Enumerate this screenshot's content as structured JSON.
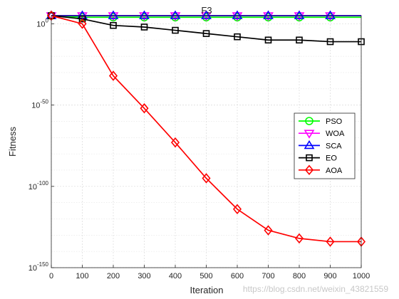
{
  "chart_data": {
    "type": "line",
    "title": "F3",
    "xlabel": "Iteration",
    "ylabel": "Fitness",
    "x_scale": "linear",
    "y_scale": "log",
    "xlim": [
      0,
      1000
    ],
    "ylim_exponent": [
      -150,
      5
    ],
    "x_ticks": [
      0,
      100,
      200,
      300,
      400,
      500,
      600,
      700,
      800,
      900,
      1000
    ],
    "x_tick_labels": [
      "0",
      "100",
      "200",
      "300",
      "400",
      "500",
      "600",
      "700",
      "800",
      "900",
      "1000"
    ],
    "y_ticks_exponent": [
      0,
      -50,
      -100,
      -150
    ],
    "grid": true,
    "minor_grid": true,
    "legend_position": "right",
    "series": [
      {
        "name": "PSO",
        "color": "#00ff00",
        "marker": "circle",
        "x": [
          0,
          100,
          200,
          300,
          400,
          500,
          600,
          700,
          800,
          900
        ],
        "y_exponent": [
          5,
          4,
          4,
          4,
          4,
          4,
          4,
          4,
          4,
          4
        ]
      },
      {
        "name": "WOA",
        "color": "#ff00ff",
        "marker": "triangle-down",
        "x": [
          0,
          100,
          200,
          300,
          400,
          500,
          600,
          700,
          800,
          900
        ],
        "y_exponent": [
          5,
          5,
          5,
          5,
          5,
          5,
          5,
          5,
          5,
          5
        ]
      },
      {
        "name": "SCA",
        "color": "#0000ff",
        "marker": "triangle-up",
        "x": [
          0,
          100,
          200,
          300,
          400,
          500,
          600,
          700,
          800,
          900
        ],
        "y_exponent": [
          5,
          5,
          5,
          5,
          5,
          5,
          5,
          5,
          5,
          5
        ]
      },
      {
        "name": "EO",
        "color": "#000000",
        "marker": "square",
        "x": [
          0,
          100,
          200,
          300,
          400,
          500,
          600,
          700,
          800,
          900,
          1000
        ],
        "y_exponent": [
          5,
          3,
          -1,
          -2,
          -4,
          -6,
          -8,
          -10,
          -10,
          -11,
          -11
        ]
      },
      {
        "name": "AOA",
        "color": "#ff0000",
        "marker": "diamond",
        "x": [
          0,
          100,
          200,
          300,
          400,
          500,
          600,
          700,
          800,
          900,
          1000
        ],
        "y_exponent": [
          5,
          0,
          -32,
          -52,
          -73,
          -95,
          -114,
          -127,
          -132,
          -134,
          -134
        ]
      }
    ]
  },
  "watermark": "https://blog.csdn.net/weixin_43821559"
}
